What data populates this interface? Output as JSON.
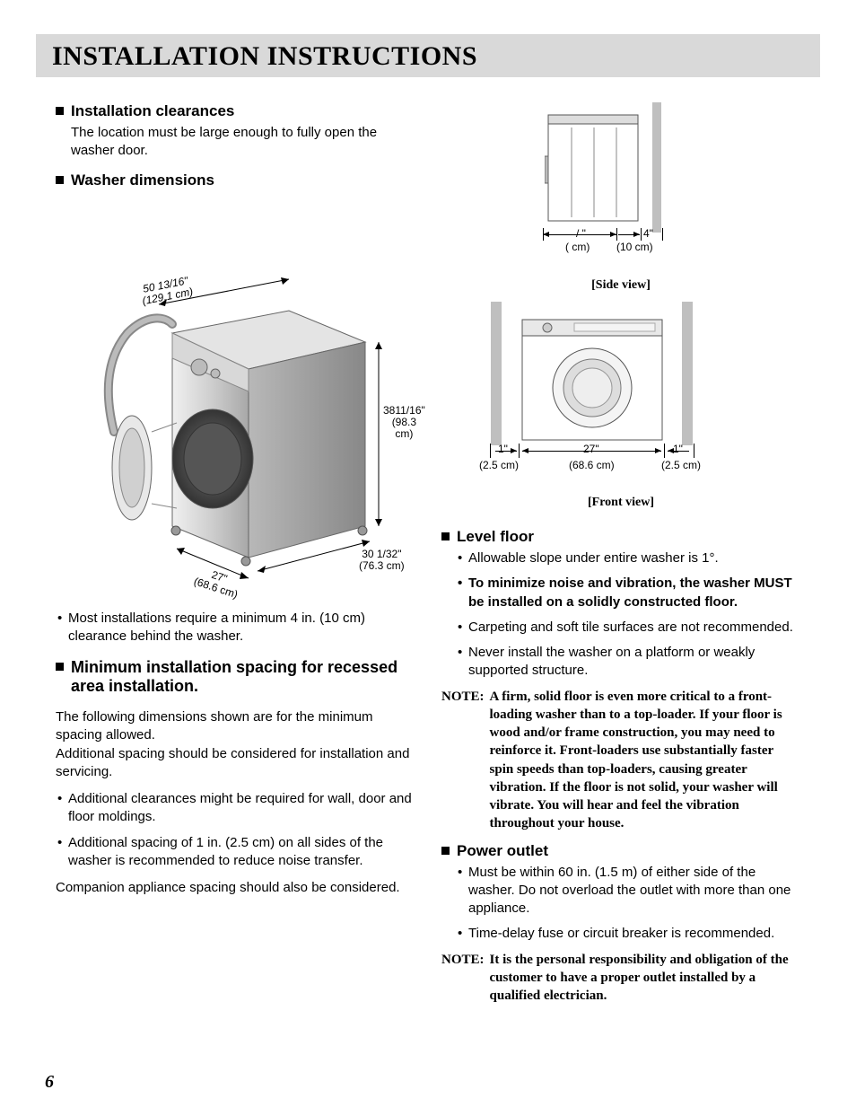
{
  "title": "INSTALLATION INSTRUCTIONS",
  "page_number": "6",
  "left": {
    "clearances": {
      "heading": "Installation clearances",
      "body": "The location must be large enough to fully open the washer door."
    },
    "dimensions": {
      "heading": "Washer dimensions",
      "labels": {
        "diag": "50 13/16\"\n(129.1 cm)",
        "height": "3811/16\"\n(98.3 cm)",
        "depth": "30 1/32\"\n(76.3 cm)",
        "width": "27\"\n(68.6 cm)"
      }
    },
    "clearance_note": "Most installations require a minimum 4 in. (10 cm) clearance behind the washer.",
    "min_spacing": {
      "heading": "Minimum installation spacing for recessed area installation.",
      "p1": "The following dimensions shown are for the minimum spacing allowed.",
      "p2": "Additional spacing should be considered for installation and servicing.",
      "bullets": [
        "Additional clearances might be required for wall, door and floor moldings.",
        "Additional spacing of 1 in. (2.5 cm) on all sides of the washer is recommended to reduce noise transfer."
      ],
      "p3": "Companion appliance spacing should also be considered."
    }
  },
  "right": {
    "side_view": {
      "label": "[Side view]",
      "gap_front": "/  \"",
      "gap_front_cm": "(   cm)",
      "gap_back": "4\"",
      "gap_back_cm": "(10 cm)"
    },
    "front_view": {
      "label": "[Front view]",
      "side_gap": "1\"",
      "side_gap_cm": "(2.5 cm)",
      "width": "27\"",
      "width_cm": "(68.6 cm)",
      "side_gap2": "1\"",
      "side_gap2_cm": "(2.5 cm)"
    },
    "level_floor": {
      "heading": "Level floor",
      "bullets": [
        {
          "text": "Allowable slope under entire washer is 1°.",
          "bold": false
        },
        {
          "text": "To minimize noise and vibration, the washer MUST be installed on a solidly constructed floor.",
          "bold": true
        },
        {
          "text": "Carpeting and soft tile surfaces are not recommended.",
          "bold": false
        },
        {
          "text": "Never install the washer on a platform or weakly supported structure.",
          "bold": false
        }
      ],
      "note": "A firm, solid floor is even more critical to a front-loading washer than to a top-loader. If your floor is wood and/or frame construction, you may need to reinforce it. Front-loaders use substantially faster spin speeds than top-loaders, causing greater vibration. If the floor is not solid, your washer will vibrate. You will hear and feel the vibration throughout your house."
    },
    "power_outlet": {
      "heading": "Power outlet",
      "bullets": [
        "Must be within 60 in. (1.5 m) of either side of the washer. Do not overload the outlet with more than one appliance.",
        "Time-delay fuse or circuit breaker is recommended."
      ],
      "note": "It is the personal responsibility and obligation of the customer to have a proper outlet installed by a qualified electrician."
    }
  },
  "note_label": "NOTE:"
}
